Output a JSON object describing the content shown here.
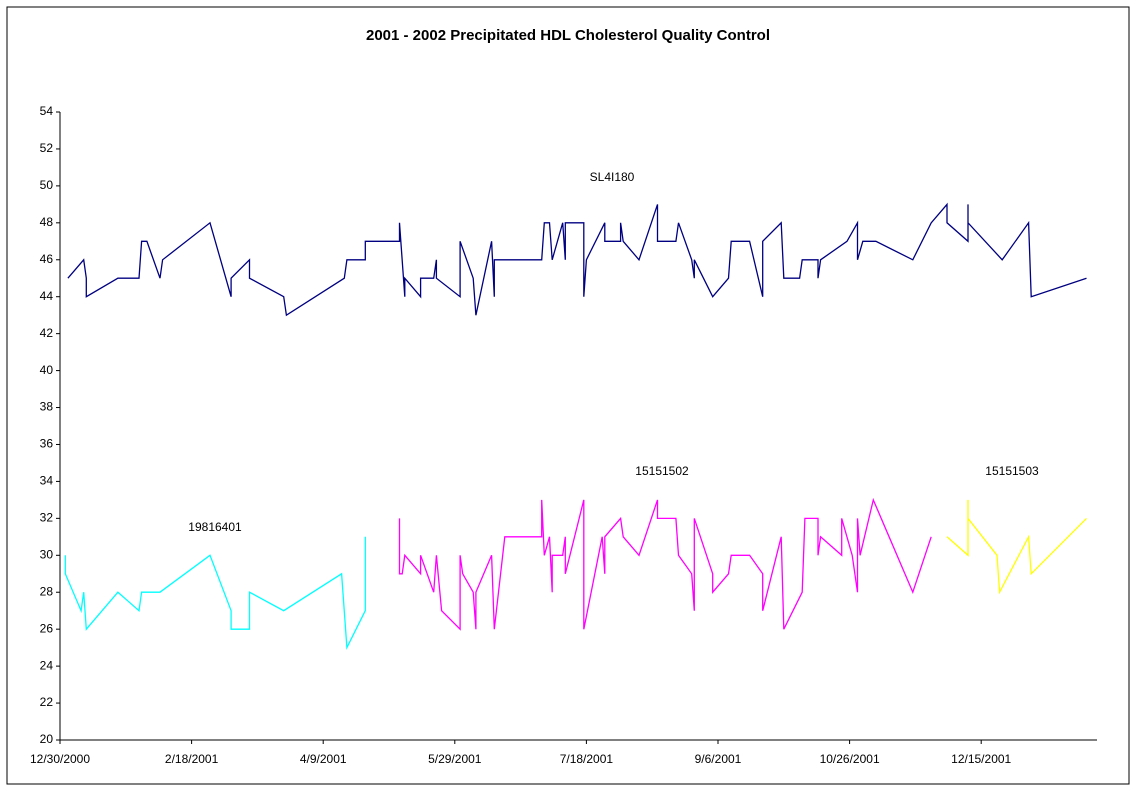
{
  "chart_data": {
    "type": "line",
    "title": "2001 - 2002 Precipitated HDL Cholesterol Quality Control",
    "xlim": [
      "12/30/2000",
      "1/28/2002"
    ],
    "xticks": [
      "12/30/2000",
      "2/18/2001",
      "4/9/2001",
      "5/29/2001",
      "7/18/2001",
      "9/6/2001",
      "10/26/2001",
      "12/15/2001"
    ],
    "ylim": [
      20,
      54
    ],
    "yticks": [
      20,
      22,
      24,
      26,
      28,
      30,
      32,
      34,
      36,
      38,
      40,
      42,
      44,
      46,
      48,
      50,
      52,
      54
    ],
    "grid": false,
    "series": [
      {
        "name": "SL4I180",
        "color": "#000080",
        "x": [
          "1/2/2001",
          "1/8/2001",
          "1/9/2001",
          "1/9/2001",
          "1/21/2001",
          "1/29/2001",
          "1/30/2001",
          "2/1/2001",
          "2/6/2001",
          "2/7/2001",
          "2/25/2001",
          "3/5/2001",
          "3/5/2001",
          "3/12/2001",
          "3/12/2001",
          "3/25/2001",
          "3/26/2001",
          "4/17/2001",
          "4/18/2001",
          "4/25/2001",
          "4/25/2001",
          "5/8/2001",
          "5/8/2001",
          "5/10/2001",
          "5/10/2001",
          "5/16/2001",
          "5/16/2001",
          "5/21/2001",
          "5/22/2001",
          "5/22/2001",
          "5/31/2001",
          "5/31/2001",
          "6/5/2001",
          "6/6/2001",
          "6/12/2001",
          "6/13/2001",
          "6/13/2001",
          "7/1/2001",
          "7/2/2001",
          "7/4/2001",
          "7/5/2001",
          "7/9/2001",
          "7/10/2001",
          "7/10/2001",
          "7/17/2001",
          "7/17/2001",
          "7/18/2001",
          "7/25/2001",
          "7/25/2001",
          "7/31/2001",
          "7/31/2001",
          "8/1/2001",
          "8/7/2001",
          "8/14/2001",
          "8/14/2001",
          "8/21/2001",
          "8/22/2001",
          "8/27/2001",
          "8/28/2001",
          "8/28/2001",
          "9/4/2001",
          "9/10/2001",
          "9/11/2001",
          "9/18/2001",
          "9/23/2001",
          "9/23/2001",
          "9/30/2001",
          "10/1/2001",
          "10/7/2001",
          "10/8/2001",
          "10/14/2001",
          "10/14/2001",
          "10/15/2001",
          "10/25/2001",
          "10/29/2001",
          "10/29/2001",
          "10/31/2001",
          "11/5/2001",
          "11/19/2001",
          "11/26/2001",
          "12/2/2001",
          "12/2/2001",
          "12/10/2001",
          "12/10/2001",
          "12/10/2001",
          "12/23/2001",
          "1/2/2002",
          "1/3/2002",
          "1/24/2002"
        ],
        "values": [
          45,
          46,
          45,
          44,
          45,
          45,
          47,
          47,
          45,
          46,
          48,
          44,
          45,
          46,
          45,
          44,
          43,
          45,
          46,
          46,
          47,
          47,
          48,
          44,
          45,
          44,
          45,
          45,
          46,
          45,
          44,
          47,
          45,
          43,
          47,
          44,
          46,
          46,
          48,
          48,
          46,
          48,
          46,
          48,
          48,
          44,
          46,
          48,
          47,
          47,
          48,
          47,
          46,
          49,
          47,
          47,
          48,
          46,
          45,
          46,
          44,
          45,
          47,
          47,
          44,
          47,
          48,
          45,
          45,
          46,
          46,
          45,
          46,
          47,
          48,
          46,
          47,
          47,
          46,
          48,
          49,
          48,
          47,
          49,
          48,
          46,
          48,
          44,
          45
        ]
      },
      {
        "name": "19816401",
        "color": "#00ffff",
        "x": [
          "1/1/2001",
          "1/1/2001",
          "1/7/2001",
          "1/8/2001",
          "1/9/2001",
          "1/21/2001",
          "1/29/2001",
          "1/30/2001",
          "2/6/2001",
          "2/25/2001",
          "3/5/2001",
          "3/5/2001",
          "3/12/2001",
          "3/12/2001",
          "3/25/2001",
          "4/16/2001",
          "4/18/2001",
          "4/25/2001",
          "4/25/2001"
        ],
        "values": [
          30,
          29,
          27,
          28,
          26,
          28,
          27,
          28,
          28,
          30,
          27,
          26,
          26,
          28,
          27,
          29,
          25,
          27,
          31
        ]
      },
      {
        "name": "15151502",
        "color": "#ff00ff",
        "x": [
          "5/8/2001",
          "5/8/2001",
          "5/9/2001",
          "5/10/2001",
          "5/16/2001",
          "5/16/2001",
          "5/21/2001",
          "5/22/2001",
          "5/24/2001",
          "5/31/2001",
          "5/31/2001",
          "6/1/2001",
          "6/5/2001",
          "6/6/2001",
          "6/6/2001",
          "6/12/2001",
          "6/13/2001",
          "6/17/2001",
          "7/1/2001",
          "7/1/2001",
          "7/2/2001",
          "7/4/2001",
          "7/5/2001",
          "7/5/2001",
          "7/9/2001",
          "7/10/2001",
          "7/10/2001",
          "7/17/2001",
          "7/17/2001",
          "7/24/2001",
          "7/25/2001",
          "7/25/2001",
          "7/31/2001",
          "8/1/2001",
          "8/7/2001",
          "8/14/2001",
          "8/14/2001",
          "8/21/2001",
          "8/22/2001",
          "8/27/2001",
          "8/28/2001",
          "8/28/2001",
          "9/4/2001",
          "9/4/2001",
          "9/10/2001",
          "9/11/2001",
          "9/18/2001",
          "9/23/2001",
          "9/23/2001",
          "9/30/2001",
          "10/1/2001",
          "10/8/2001",
          "10/9/2001",
          "10/14/2001",
          "10/14/2001",
          "10/15/2001",
          "10/23/2001",
          "10/23/2001",
          "10/27/2001",
          "10/29/2001",
          "10/29/2001",
          "10/30/2001",
          "11/4/2001",
          "11/19/2001",
          "11/26/2001"
        ],
        "values": [
          32,
          29,
          29,
          30,
          29,
          30,
          28,
          30,
          27,
          26,
          30,
          29,
          28,
          26,
          28,
          30,
          26,
          31,
          31,
          33,
          30,
          31,
          28,
          30,
          30,
          31,
          29,
          33,
          26,
          31,
          29,
          31,
          32,
          31,
          30,
          33,
          32,
          32,
          30,
          29,
          27,
          32,
          29,
          28,
          29,
          30,
          30,
          29,
          27,
          31,
          26,
          28,
          32,
          32,
          30,
          31,
          30,
          32,
          30,
          28,
          32,
          30,
          33,
          28,
          31
        ]
      },
      {
        "name": "15151503",
        "color": "#ffff00",
        "x": [
          "12/2/2001",
          "12/10/2001",
          "12/10/2001",
          "12/10/2001",
          "12/21/2001",
          "12/22/2001",
          "1/2/2002",
          "1/3/2002",
          "1/24/2002"
        ],
        "values": [
          31,
          30,
          33,
          32,
          30,
          28,
          31,
          29,
          32
        ]
      }
    ]
  }
}
